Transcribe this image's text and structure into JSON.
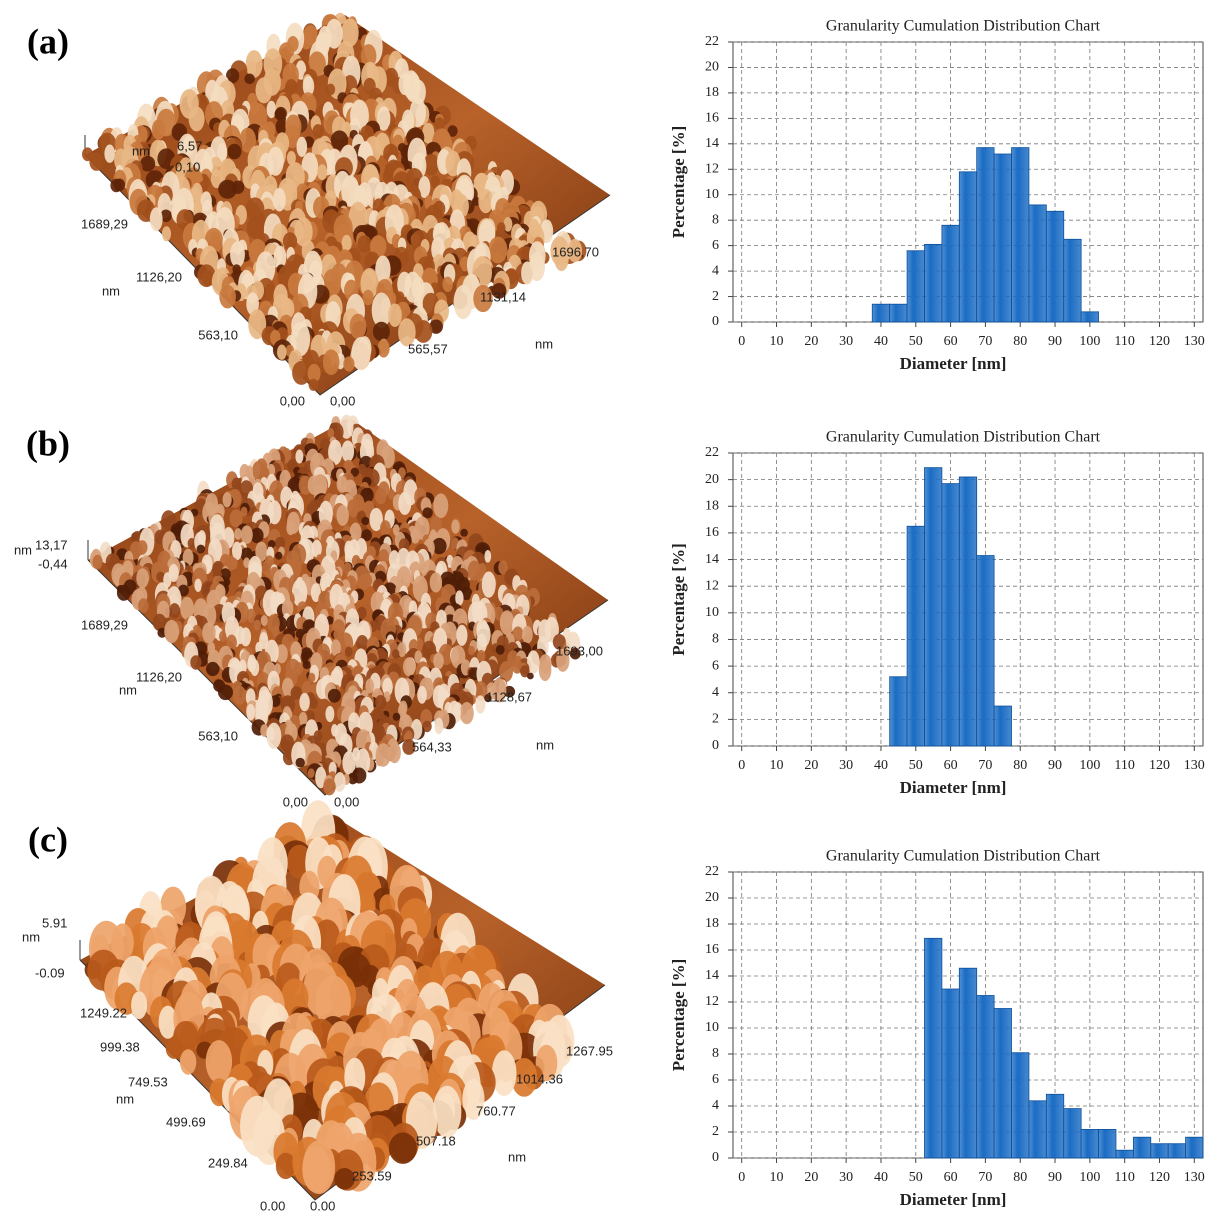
{
  "chart_data": [
    {
      "type": "histogram",
      "title": "Granularity Cumulation Distribution Chart",
      "x_label": "Diameter [nm]",
      "y_label": "Percentage [%]",
      "bins": [
        37.5,
        42.5,
        47.5,
        52.5,
        57.5,
        62.5,
        67.5,
        72.5,
        77.5,
        82.5,
        87.5,
        92.5,
        97.5,
        102.5
      ],
      "values": [
        1.4,
        1.4,
        5.6,
        6.1,
        7.6,
        11.8,
        13.7,
        13.2,
        13.7,
        9.2,
        8.7,
        6.5,
        0.8
      ],
      "color": "#1a6cc4",
      "xlim": [
        -2.5,
        132.5
      ],
      "xticks": [
        0,
        10,
        20,
        30,
        40,
        50,
        60,
        70,
        80,
        90,
        100,
        110,
        120,
        130
      ],
      "ylim": [
        0,
        22
      ],
      "yticks": [
        0,
        2,
        4,
        6,
        8,
        10,
        12,
        14,
        16,
        18,
        20,
        22
      ],
      "grid": true
    },
    {
      "type": "histogram",
      "title": "Granularity Cumulation Distribution Chart",
      "x_label": "Diameter [nm]",
      "y_label": "Percentage [%]",
      "bins": [
        42.5,
        47.5,
        52.5,
        57.5,
        62.5,
        67.5,
        72.5,
        77.5
      ],
      "values": [
        5.2,
        16.5,
        20.9,
        19.7,
        20.2,
        14.3,
        3.0
      ],
      "color": "#1a6cc4",
      "xlim": [
        -2.5,
        132.5
      ],
      "xticks": [
        0,
        10,
        20,
        30,
        40,
        50,
        60,
        70,
        80,
        90,
        100,
        110,
        120,
        130
      ],
      "ylim": [
        0,
        22
      ],
      "yticks": [
        0,
        2,
        4,
        6,
        8,
        10,
        12,
        14,
        16,
        18,
        20,
        22
      ],
      "grid": true
    },
    {
      "type": "histogram",
      "title": "Granularity Cumulation Distribution Chart",
      "x_label": "Diameter [nm]",
      "y_label": "Percentage [%]",
      "bins": [
        52.5,
        57.5,
        62.5,
        67.5,
        72.5,
        77.5,
        82.5,
        87.5,
        92.5,
        97.5,
        102.5,
        107.5,
        112.5,
        117.5,
        122.5,
        127.5,
        132.5
      ],
      "values": [
        16.9,
        13.0,
        14.6,
        12.5,
        11.5,
        8.1,
        4.4,
        4.9,
        3.8,
        2.2,
        2.2,
        0.6,
        1.6,
        1.1,
        1.1,
        1.6
      ],
      "color": "#1a6cc4",
      "xlim": [
        -2.5,
        132.5
      ],
      "xticks": [
        0,
        10,
        20,
        30,
        40,
        50,
        60,
        70,
        80,
        90,
        100,
        110,
        120,
        130
      ],
      "ylim": [
        0,
        22
      ],
      "yticks": [
        0,
        2,
        4,
        6,
        8,
        10,
        12,
        14,
        16,
        18,
        20,
        22
      ],
      "grid": true
    }
  ],
  "panels": [
    {
      "label": "(a)",
      "afm_labels": [
        "nm",
        "6,57",
        "0,10",
        "1689,29",
        "1126,20",
        "nm",
        "563,10",
        "0,00",
        "0,00",
        "565,57",
        "1131,14",
        "1696,70",
        "nm"
      ]
    },
    {
      "label": "(b)",
      "afm_labels": [
        "nm",
        "13,17",
        "-0,44",
        "1689,29",
        "1126,20",
        "nm",
        "563,10",
        "0,00",
        "0,00",
        "564,33",
        "1128,67",
        "1693,00",
        "nm"
      ]
    },
    {
      "label": "(c)",
      "afm_labels": [
        "5.91",
        "nm",
        "-0.09",
        "1249.22",
        "999.38",
        "749.53",
        "nm",
        "499.69",
        "249.84",
        "0.00",
        "0.00",
        "253.59",
        "507.18",
        "760.77",
        "1014.36",
        "1267.95",
        "nm"
      ]
    }
  ]
}
